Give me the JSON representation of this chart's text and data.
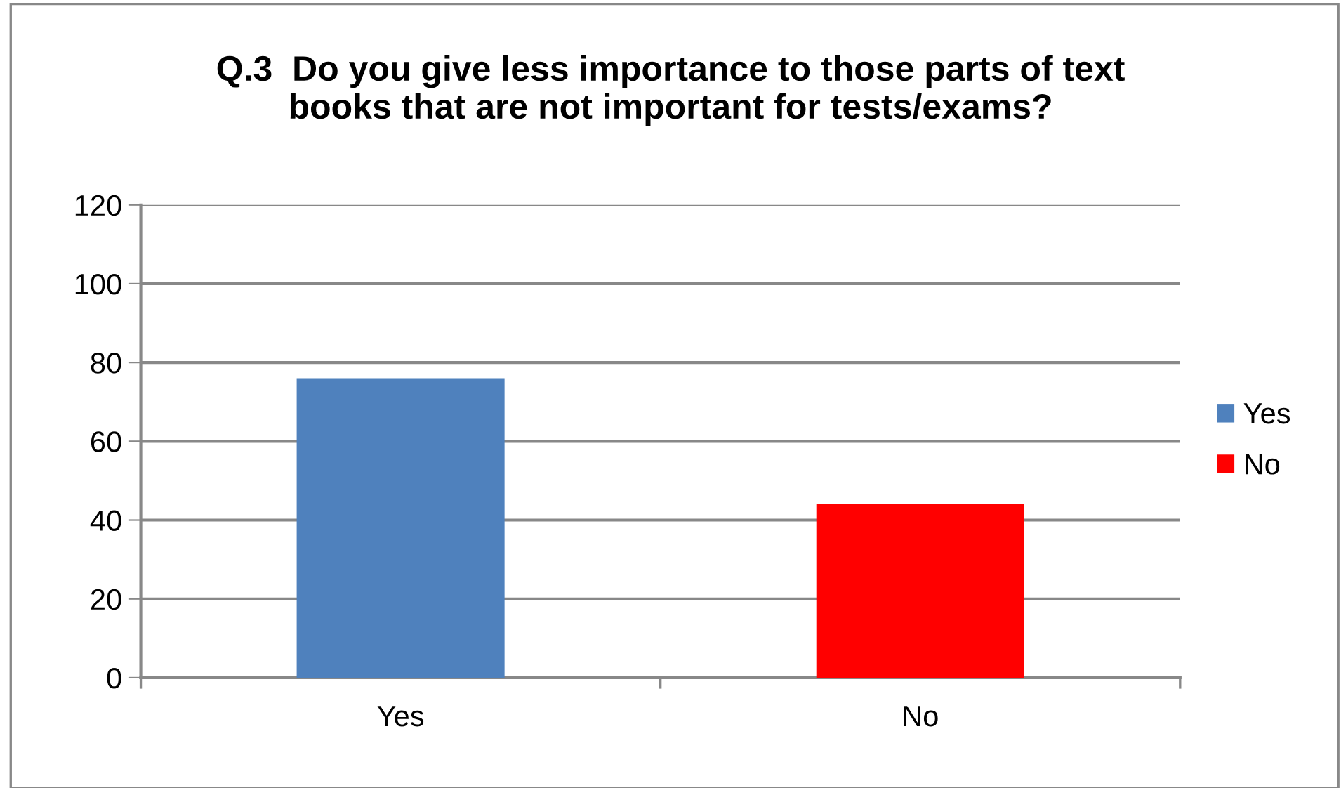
{
  "chart_data": {
    "type": "bar",
    "title": "Q.3  Do you give less importance to those parts of text\nbooks that are not important for tests/exams?",
    "categories": [
      "Yes",
      "No"
    ],
    "series": [
      {
        "name": "Yes",
        "color": "#4f81bd",
        "values": [
          76,
          null
        ]
      },
      {
        "name": "No",
        "color": "#ff0000",
        "values": [
          null,
          44
        ]
      }
    ],
    "ylim": [
      0,
      120
    ],
    "yticks": [
      0,
      20,
      40,
      60,
      80,
      100,
      120
    ],
    "grid": "y",
    "legend": "right"
  }
}
